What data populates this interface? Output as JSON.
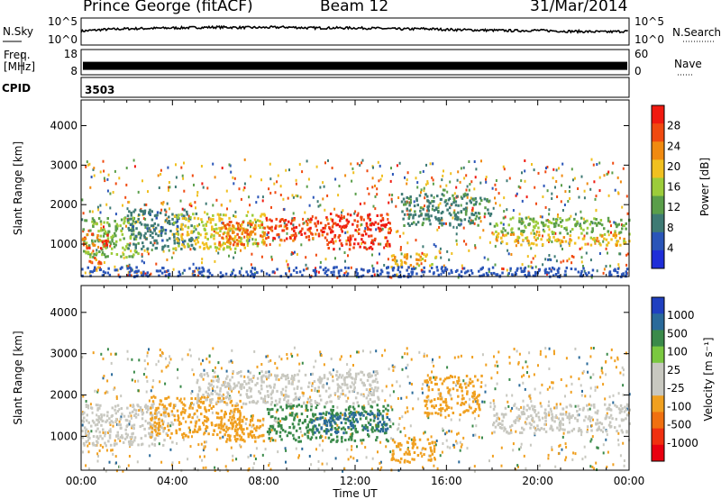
{
  "header": {
    "station": "Prince George (fitACF)",
    "beam": "Beam 12",
    "date": "31/Mar/2014"
  },
  "labels": {
    "nsky": "N.Sky",
    "nsearch": "N.Search",
    "freq_line1": "Freq.",
    "freq_line2": "[MHz]",
    "nave": "Nave",
    "cpid": "CPID",
    "cpid_value": "3503"
  },
  "colors": {
    "power_scale": [
      "#1f2ed8",
      "#2a55b8",
      "#3e7a74",
      "#5a9e4a",
      "#9ccc3a",
      "#f0c020",
      "#f08a10",
      "#f04a10",
      "#f01a10"
    ],
    "velocity_scale": [
      "#2040c0",
      "#2a6a9a",
      "#3a8a4a",
      "#7ac840",
      "#c8c8c0",
      "#c8c8c0",
      "#f0a020",
      "#f07010",
      "#f03010",
      "#e80010"
    ]
  },
  "chart_data": [
    {
      "type": "line",
      "name": "noise",
      "left_axis": {
        "label": "N.Sky",
        "ticks": [
          "10^5",
          "10^0"
        ]
      },
      "right_axis": {
        "label": "N.Search",
        "ticks": [
          "10^5",
          "10^0"
        ]
      },
      "ylim_log10": [
        0,
        5
      ],
      "x": [
        0,
        1,
        2,
        3,
        4,
        5,
        6,
        7,
        8,
        9,
        10,
        11,
        12,
        13,
        14,
        15,
        16,
        17,
        18,
        19,
        20,
        21,
        22,
        23,
        24
      ],
      "series": [
        {
          "values_log10": [
            2.6,
            3.0,
            3.2,
            3.3,
            3.4,
            3.5,
            3.6,
            3.5,
            3.5,
            3.6,
            3.4,
            3.4,
            3.4,
            3.3,
            3.1,
            3.2,
            3.0,
            2.9,
            2.8,
            2.7,
            2.8,
            2.6,
            2.5,
            2.4,
            2.6
          ]
        }
      ]
    },
    {
      "type": "line",
      "name": "frequency-nave",
      "left_axis": {
        "label": "Freq. [MHz]",
        "ticks": [
          "18",
          "8"
        ],
        "ylim": [
          8,
          18
        ]
      },
      "right_axis": {
        "label": "Nave",
        "ticks": [
          "60",
          "0"
        ],
        "ylim": [
          0,
          60
        ]
      },
      "series": [
        {
          "name": "Freq",
          "values": [
            11
          ]
        }
      ]
    },
    {
      "type": "heatmap",
      "name": "power",
      "xlabel": "",
      "ylabel": "Slant Range [km]",
      "xlim": [
        0,
        24
      ],
      "ylim": [
        180,
        4650
      ],
      "yticks": [
        1000,
        2000,
        3000,
        4000
      ],
      "colorbar": {
        "label": "Power [dB]",
        "min": 0,
        "max": 32,
        "ticks": [
          4,
          8,
          12,
          16,
          20,
          24,
          28
        ]
      },
      "regions": [
        {
          "x": [
            0.0,
            2.5
          ],
          "range": [
            700,
            1700
          ],
          "value": 14
        },
        {
          "x": [
            0.0,
            1.2
          ],
          "range": [
            900,
            1300
          ],
          "value": 26
        },
        {
          "x": [
            0.2,
            1.0
          ],
          "range": [
            400,
            700
          ],
          "value": 24
        },
        {
          "x": [
            2.0,
            5.0
          ],
          "range": [
            900,
            1900
          ],
          "value": 8
        },
        {
          "x": [
            4.0,
            8.0
          ],
          "range": [
            900,
            1800
          ],
          "value": 18
        },
        {
          "x": [
            6.0,
            8.0
          ],
          "range": [
            1000,
            1600
          ],
          "value": 25
        },
        {
          "x": [
            8.0,
            10.5
          ],
          "range": [
            1100,
            1700
          ],
          "value": 27
        },
        {
          "x": [
            10.5,
            13.5
          ],
          "range": [
            900,
            1800
          ],
          "value": 29
        },
        {
          "x": [
            13.5,
            15.5
          ],
          "range": [
            400,
            800
          ],
          "value": 20
        },
        {
          "x": [
            14.0,
            18.0
          ],
          "range": [
            1500,
            2300
          ],
          "value": 10
        },
        {
          "x": [
            18.0,
            24.0
          ],
          "range": [
            1300,
            1700
          ],
          "value": 14
        },
        {
          "x": [
            18.0,
            24.0
          ],
          "range": [
            1000,
            1300
          ],
          "value": 20
        },
        {
          "x": [
            0.0,
            24.0
          ],
          "range": [
            200,
            450
          ],
          "value": 5
        }
      ]
    },
    {
      "type": "heatmap",
      "name": "velocity",
      "xlabel": "Time UT",
      "ylabel": "Slant Range [km]",
      "xlim": [
        0,
        24
      ],
      "ylim": [
        180,
        4650
      ],
      "xticks": [
        "00:00",
        "04:00",
        "08:00",
        "12:00",
        "16:00",
        "20:00",
        "00:00"
      ],
      "yticks": [
        1000,
        2000,
        3000,
        4000
      ],
      "colorbar": {
        "label": "Velocity [m s⁻¹]",
        "ticks": [
          "1000",
          "500",
          "100",
          "25",
          "-25",
          "-100",
          "-500",
          "-1000"
        ]
      },
      "regions": [
        {
          "x": [
            0.0,
            4.0
          ],
          "range": [
            800,
            1800
          ],
          "value": 0
        },
        {
          "x": [
            3.0,
            7.0
          ],
          "range": [
            1000,
            2000
          ],
          "value": -150
        },
        {
          "x": [
            6.0,
            8.0
          ],
          "range": [
            900,
            1600
          ],
          "value": -200
        },
        {
          "x": [
            8.0,
            13.5
          ],
          "range": [
            900,
            1800
          ],
          "value": 200
        },
        {
          "x": [
            10.0,
            13.5
          ],
          "range": [
            1100,
            1600
          ],
          "value": 600
        },
        {
          "x": [
            13.5,
            15.5
          ],
          "range": [
            400,
            1000
          ],
          "value": -150
        },
        {
          "x": [
            15.0,
            17.5
          ],
          "range": [
            1500,
            2500
          ],
          "value": -200
        },
        {
          "x": [
            18.0,
            24.0
          ],
          "range": [
            1100,
            1800
          ],
          "value": 0
        },
        {
          "x": [
            5.0,
            13.0
          ],
          "range": [
            1800,
            2600
          ],
          "value": 0
        }
      ]
    }
  ]
}
